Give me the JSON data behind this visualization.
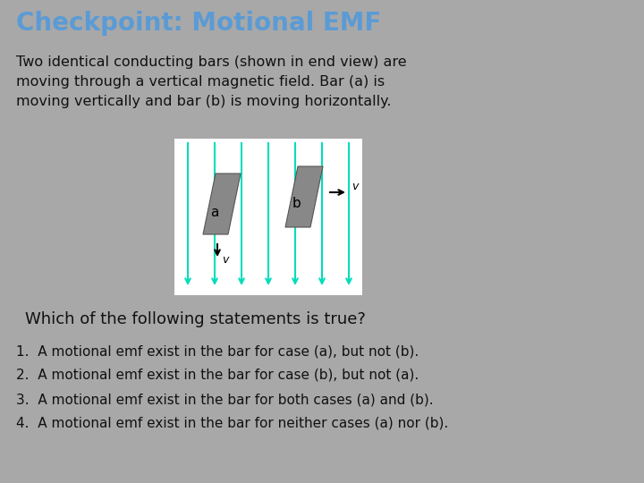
{
  "background_color": "#a8a8a8",
  "title": "Checkpoint: Motional EMF",
  "title_color": "#5b9bd5",
  "title_fontsize": 20,
  "body_text": "Two identical conducting bars (shown in end view) are\nmoving through a vertical magnetic field. Bar (a) is\nmoving vertically and bar (b) is moving horizontally.",
  "body_fontsize": 11.5,
  "body_color": "#111111",
  "question_text": "Which of the following statements is true?",
  "question_fontsize": 13,
  "question_color": "#111111",
  "choices": [
    "1.  A motional emf exist in the bar for case (a), but not (b).",
    "2.  A motional emf exist in the bar for case (b), but not (a).",
    "3.  A motional emf exist in the bar for both cases (a) and (b).",
    "4.  A motional emf exist in the bar for neither cases (a) nor (b)."
  ],
  "choices_fontsize": 11,
  "choices_color": "#111111",
  "diagram_bg": "#ffffff",
  "field_line_color": "#00ddbb",
  "bar_color": "#888888",
  "bar_edge_color": "#555555"
}
